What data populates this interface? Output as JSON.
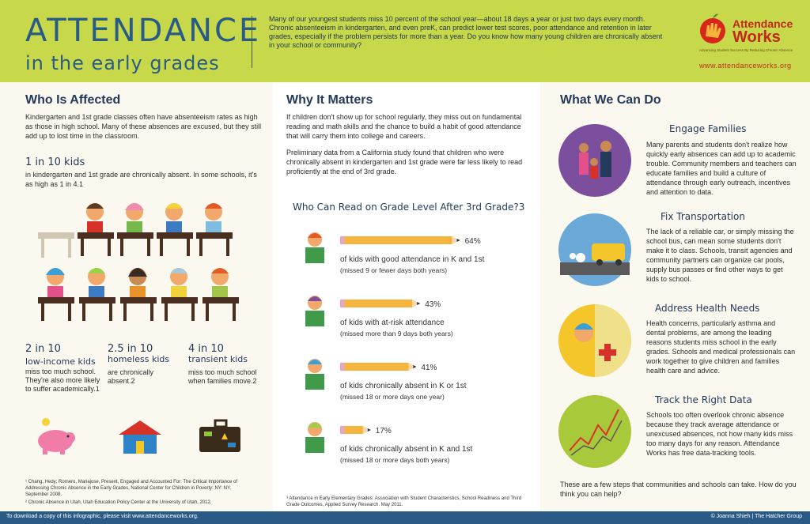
{
  "header": {
    "title": "ATTENDANCE",
    "subtitle": "in the early grades",
    "intro": "Many of our youngest students miss 10 percent of the school year—about 18 days a year or just two days every month. Chronic absenteeism in kindergarten, and even preK, can predict lower test scores, poor attendance and retention in later grades, especially if the problem persists for more than a year. Do you know how many young children are chronically absent in your school or community?",
    "logo_line1": "Attendance",
    "logo_line2": "Works",
    "logo_tagline": "Advancing Student Success By Reducing Chronic Absence",
    "logo_url": "www.attendanceworks.org"
  },
  "left": {
    "heading": "Who Is Affected",
    "para": "Kindergarten and 1st grade classes often have absenteeism rates as high as those in high school. Many of these absences are excused, but they still add up to lost time in the classroom.",
    "stat1": "1 in 10 kids",
    "stat1_text": "in kindergarten and 1st grade are chronically absent. In some schools, it's as high as 1 in 4.1",
    "stats": [
      {
        "value": "2 in 10",
        "label": "low-income kids",
        "text": "miss too much school. They're also more likely to suffer academically.1",
        "icon": "piggy-bank-icon"
      },
      {
        "value": "2.5 in 10",
        "label": "homeless kids",
        "text": "are chronically absent.2",
        "icon": "house-icon"
      },
      {
        "value": "4 in 10",
        "label": "transient kids",
        "text": "miss too much school when families move.2",
        "icon": "suitcase-icon"
      }
    ],
    "footnote1": "¹ Chang, Hedy; Romero, Mariajose, Present, Engaged and Accounted For: The Critical Importance of Addressing Chronic Absence in the Early Grades, National Center for Children in Poverty: NY: NY, September 2008.",
    "footnote2": "² Chronic Absence in Utah, Utah Education Policy Center at the University of Utah, 2012."
  },
  "middle": {
    "heading": "Why It Matters",
    "para1": "If children don't show up for school regularly, they miss out on fundamental reading and math skills and the chance to build a habit of good attendance that will carry them into college and careers.",
    "para2": "Preliminary data from a California study found that children who were chronically absent in kindergarten and 1st grade were far less likely to read proficiently at the end of 3rd grade.",
    "chart_title": "Who Can Read on Grade Level After 3rd Grade?3",
    "footnote": "³ Attendance in Early Elementary Grades: Association with Student Characteristics, School Readiness and Third Grade Outcomes, Applied Survey Research. May 2011."
  },
  "chart_data": {
    "type": "bar",
    "title": "Who Can Read on Grade Level After 3rd Grade?3",
    "categories": [
      "of kids with good attendance in K and 1st",
      "of kids with at-risk attendance",
      "of kids chronically absent in K or 1st",
      "of kids chronically absent in K and 1st"
    ],
    "notes": [
      "(missed 9 or fewer days both years)",
      "(missed more than 9 days both years)",
      "(missed 18 or more days one year)",
      "(missed 18 or more days both years)"
    ],
    "values": [
      64,
      43,
      41,
      17
    ],
    "labels": [
      "64%",
      "43%",
      "41%",
      "17%"
    ],
    "xlim": [
      0,
      100
    ],
    "bar_color": "#f6b33d"
  },
  "right": {
    "heading": "What We Can Do",
    "items": [
      {
        "title": "Engage Families",
        "text": "Many parents and students don't realize how quickly early absences can add up to academic trouble. Community members and teachers can educate families and build a culture of attendance through early outreach, incentives and attention to data.",
        "color": "#7b4f9e"
      },
      {
        "title": "Fix Transportation",
        "text": "The lack of a reliable car, or simply missing the school bus, can mean some students don't make it to class. Schools, transit agencies and community partners can organize car pools, supply bus passes or find other ways to get kids to school.",
        "color": "#6aa8d8"
      },
      {
        "title": "Address Health Needs",
        "text": "Health concerns, particularly asthma and dental problems, are among the leading reasons students miss school in the early grades. Schools and medical professionals can work together to give children and families health care and advice.",
        "color": "#f4c62a"
      },
      {
        "title": "Track the Right Data",
        "text": "Schools too often overlook chronic absence because they track average attendance or unexcused absences, not how many kids miss too many days for any reason. Attendance Works has free data-tracking tools.",
        "color": "#a8c93a"
      }
    ],
    "closing": "These are a few steps that communities and schools can take. How do you think you can help?"
  },
  "footer": {
    "left": "To download a copy of this infographic, please visit www.attendanceworks.org.",
    "right": "© Joanna Shieh | The Hatcher Group"
  }
}
